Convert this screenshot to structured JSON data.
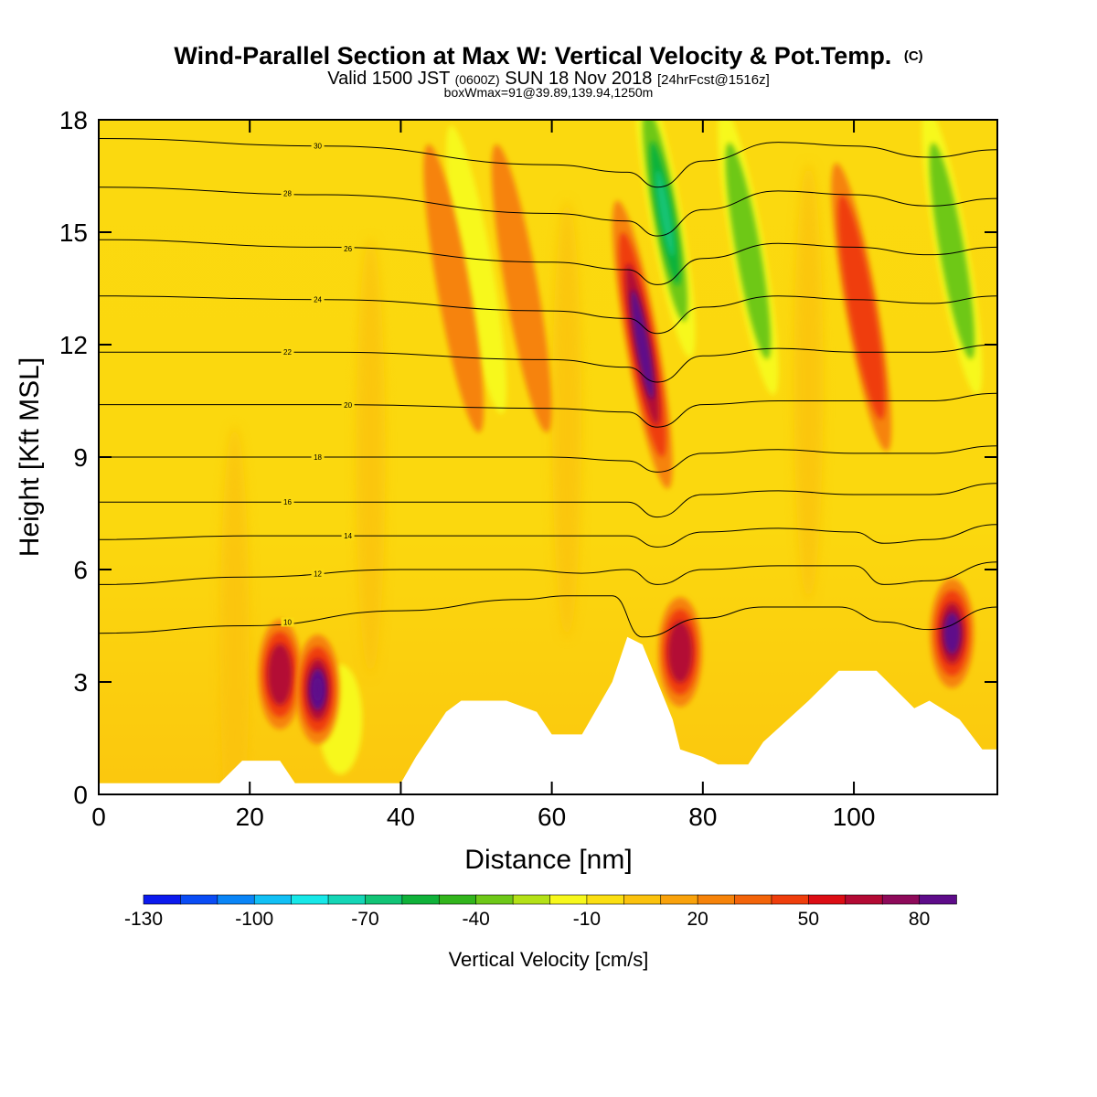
{
  "header": {
    "title": "Wind-Parallel Section at Max W: Vertical Velocity & Pot.Temp.",
    "copyright": "(C)",
    "valid_prefix": "Valid 1500 JST",
    "valid_zulu": "(0600Z)",
    "valid_date": "SUN 18 Nov 2018",
    "forecast": "[24hrFcst@1516z]",
    "box_info": "boxWmax=91@39.89,139.94,1250m"
  },
  "chart_data": {
    "type": "heatmap",
    "xlabel": "Distance [nm]",
    "ylabel": "Height [Kft MSL]",
    "xlim": [
      0,
      119
    ],
    "ylim": [
      0,
      18
    ],
    "x_ticks": [
      "0",
      "20",
      "40",
      "60",
      "80",
      "100"
    ],
    "y_ticks": [
      "0",
      "3",
      "6",
      "9",
      "12",
      "15",
      "18"
    ],
    "colorbar": {
      "label": "Vertical Velocity [cm/s]",
      "tick_labels": [
        "-130",
        "-100",
        "-70",
        "-40",
        "-10",
        "20",
        "50",
        "80"
      ],
      "colors": [
        "#0b1aee",
        "#0a4cf5",
        "#0a85f7",
        "#12c0f5",
        "#17e8e8",
        "#15d6b6",
        "#12c476",
        "#10b23a",
        "#32b51c",
        "#6ec818",
        "#b4e117",
        "#f7f81c",
        "#fbdf12",
        "#fbc20d",
        "#f9a20b",
        "#f6830a",
        "#f3640a",
        "#ef3e0c",
        "#dc0d14",
        "#b30a34",
        "#8e0a5a",
        "#5e0c8a"
      ]
    },
    "updrafts": [
      {
        "distance_nm": 24,
        "height_kft": 3.2,
        "peak_cm_s": 60
      },
      {
        "distance_nm": 29,
        "height_kft": 2.8,
        "peak_cm_s": 91
      },
      {
        "distance_nm": 47,
        "height_kft": 13.5,
        "peak_cm_s": 35
      },
      {
        "distance_nm": 56,
        "height_kft": 13.5,
        "peak_cm_s": 30
      },
      {
        "distance_nm": 72,
        "height_kft": 12.0,
        "peak_cm_s": 85
      },
      {
        "distance_nm": 77,
        "height_kft": 3.8,
        "peak_cm_s": 70
      },
      {
        "distance_nm": 101,
        "height_kft": 13.0,
        "peak_cm_s": 45
      },
      {
        "distance_nm": 113,
        "height_kft": 4.3,
        "peak_cm_s": 85
      }
    ],
    "downdrafts": [
      {
        "distance_nm": 75,
        "height_kft": 15.5,
        "min_cm_s": -75
      },
      {
        "distance_nm": 86,
        "height_kft": 14.5,
        "min_cm_s": -40
      },
      {
        "distance_nm": 50,
        "height_kft": 14.0,
        "min_cm_s": -35
      },
      {
        "distance_nm": 113,
        "height_kft": 14.5,
        "min_cm_s": -45
      },
      {
        "distance_nm": 32,
        "height_kft": 2.0,
        "min_cm_s": -35
      }
    ],
    "terrain_kft": [
      [
        0,
        0.3
      ],
      [
        16,
        0.3
      ],
      [
        19,
        0.9
      ],
      [
        24,
        0.9
      ],
      [
        26,
        0.3
      ],
      [
        40,
        0.3
      ],
      [
        42,
        1.0
      ],
      [
        44,
        1.6
      ],
      [
        46,
        2.2
      ],
      [
        48,
        2.5
      ],
      [
        54,
        2.5
      ],
      [
        58,
        2.2
      ],
      [
        60,
        1.6
      ],
      [
        64,
        1.6
      ],
      [
        68,
        3.0
      ],
      [
        70,
        4.2
      ],
      [
        72,
        4.0
      ],
      [
        74,
        3.0
      ],
      [
        76,
        2.0
      ],
      [
        77,
        1.2
      ],
      [
        80,
        1.0
      ],
      [
        82,
        0.8
      ],
      [
        86,
        0.8
      ],
      [
        88,
        1.4
      ],
      [
        94,
        2.5
      ],
      [
        98,
        3.3
      ],
      [
        103,
        3.3
      ],
      [
        108,
        2.3
      ],
      [
        110,
        2.5
      ],
      [
        114,
        2.0
      ],
      [
        117,
        1.2
      ],
      [
        119,
        1.2
      ]
    ],
    "isentropes": [
      {
        "label": "10",
        "x": [
          0,
          20,
          40,
          56,
          62,
          68,
          72,
          80,
          88,
          98,
          104,
          110,
          119
        ],
        "y": [
          4.3,
          4.5,
          4.9,
          5.2,
          5.3,
          5.3,
          4.2,
          4.7,
          5.0,
          5.0,
          4.6,
          4.4,
          5.0
        ]
      },
      {
        "label": "12",
        "x": [
          0,
          20,
          40,
          56,
          64,
          70,
          74,
          80,
          90,
          100,
          104,
          110,
          119
        ],
        "y": [
          5.6,
          5.8,
          6.0,
          6.0,
          5.9,
          6.0,
          5.6,
          6.0,
          6.1,
          6.1,
          5.6,
          5.7,
          6.2
        ]
      },
      {
        "label": "14",
        "x": [
          0,
          20,
          40,
          60,
          70,
          74,
          80,
          90,
          100,
          104,
          110,
          119
        ],
        "y": [
          6.8,
          6.9,
          6.9,
          6.9,
          6.9,
          6.6,
          7.0,
          7.1,
          7.0,
          6.7,
          6.8,
          7.2
        ]
      },
      {
        "label": "16",
        "x": [
          0,
          30,
          60,
          70,
          74,
          80,
          90,
          100,
          110,
          119
        ],
        "y": [
          7.8,
          7.8,
          7.8,
          7.8,
          7.4,
          8.0,
          8.1,
          8.0,
          8.0,
          8.3
        ]
      },
      {
        "label": "18",
        "x": [
          0,
          30,
          60,
          70,
          74,
          80,
          90,
          100,
          110,
          119
        ],
        "y": [
          9.0,
          9.0,
          9.0,
          8.9,
          8.6,
          9.1,
          9.2,
          9.1,
          9.1,
          9.3
        ]
      },
      {
        "label": "20",
        "x": [
          0,
          30,
          60,
          70,
          74,
          80,
          90,
          100,
          110,
          119
        ],
        "y": [
          10.4,
          10.4,
          10.3,
          10.2,
          9.8,
          10.4,
          10.5,
          10.5,
          10.5,
          10.7
        ]
      },
      {
        "label": "22",
        "x": [
          0,
          30,
          60,
          70,
          74,
          80,
          90,
          100,
          110,
          119
        ],
        "y": [
          11.8,
          11.8,
          11.6,
          11.4,
          11.0,
          11.7,
          11.9,
          11.8,
          11.8,
          12.0
        ]
      },
      {
        "label": "24",
        "x": [
          0,
          30,
          60,
          70,
          74,
          80,
          90,
          100,
          110,
          119
        ],
        "y": [
          13.3,
          13.2,
          12.9,
          12.7,
          12.3,
          13.0,
          13.3,
          13.2,
          13.1,
          13.3
        ]
      },
      {
        "label": "26",
        "x": [
          0,
          30,
          60,
          70,
          74,
          80,
          90,
          100,
          110,
          119
        ],
        "y": [
          14.8,
          14.6,
          14.2,
          14.0,
          13.6,
          14.3,
          14.7,
          14.6,
          14.4,
          14.6
        ]
      },
      {
        "label": "28",
        "x": [
          0,
          30,
          60,
          70,
          74,
          80,
          90,
          100,
          110,
          119
        ],
        "y": [
          16.2,
          16.0,
          15.5,
          15.3,
          14.9,
          15.6,
          16.1,
          16.0,
          15.7,
          15.9
        ]
      },
      {
        "label": "30",
        "x": [
          0,
          30,
          60,
          70,
          74,
          80,
          90,
          100,
          110,
          119
        ],
        "y": [
          17.5,
          17.3,
          16.8,
          16.6,
          16.2,
          16.9,
          17.4,
          17.3,
          17.0,
          17.2
        ]
      }
    ]
  }
}
